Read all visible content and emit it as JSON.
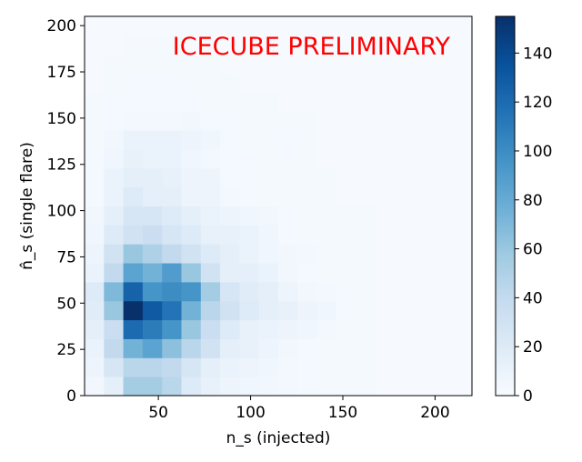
{
  "chart_data": {
    "type": "heatmap",
    "xlabel": "n_s (injected)",
    "ylabel": "n̂_s (single flare)",
    "annotation": "ICECUBE PRELIMINARY",
    "annotation_color": "#ff0000",
    "colormap": "Blues",
    "xlim": [
      10,
      220
    ],
    "ylim": [
      0,
      205
    ],
    "x_ticks": [
      50,
      100,
      150,
      200
    ],
    "y_ticks": [
      0,
      25,
      50,
      75,
      100,
      125,
      150,
      175,
      200
    ],
    "colorbar_range": [
      0,
      155
    ],
    "colorbar_ticks": [
      0,
      20,
      40,
      60,
      80,
      100,
      120,
      140
    ],
    "grid": false,
    "x_bin_edges": [
      10,
      20.5,
      31,
      41.5,
      52,
      62.5,
      73,
      83.5,
      94,
      104.5,
      115,
      125.5,
      136,
      146.5,
      157,
      167.5,
      178,
      188.5,
      199,
      209.5,
      220
    ],
    "y_bin_edges": [
      0,
      10.25,
      20.5,
      30.75,
      41,
      51.25,
      61.5,
      71.75,
      82,
      92.25,
      102.5,
      112.75,
      123,
      133.25,
      143.5,
      153.75,
      164,
      174.25,
      184.5,
      194.75,
      205
    ],
    "counts": [
      [
        5,
        15,
        55,
        55,
        45,
        20,
        12,
        8,
        6,
        5,
        4,
        3,
        2,
        2,
        2,
        1,
        1,
        1,
        1,
        1
      ],
      [
        8,
        25,
        45,
        45,
        40,
        25,
        15,
        10,
        8,
        6,
        4,
        3,
        2,
        2,
        2,
        1,
        1,
        1,
        1,
        1
      ],
      [
        10,
        40,
        75,
        85,
        65,
        45,
        30,
        15,
        12,
        8,
        5,
        3,
        2,
        2,
        2,
        1,
        1,
        1,
        1,
        1
      ],
      [
        15,
        35,
        120,
        110,
        95,
        60,
        35,
        20,
        12,
        10,
        8,
        6,
        4,
        2,
        2,
        1,
        1,
        1,
        1,
        1
      ],
      [
        18,
        60,
        155,
        130,
        115,
        75,
        45,
        30,
        20,
        15,
        12,
        8,
        6,
        3,
        2,
        1,
        1,
        1,
        1,
        1
      ],
      [
        20,
        70,
        125,
        95,
        100,
        95,
        55,
        25,
        18,
        15,
        8,
        5,
        4,
        3,
        2,
        1,
        1,
        1,
        1,
        1
      ],
      [
        10,
        40,
        85,
        75,
        90,
        60,
        30,
        15,
        15,
        10,
        5,
        3,
        2,
        2,
        2,
        1,
        1,
        1,
        1,
        1
      ],
      [
        8,
        30,
        60,
        50,
        40,
        30,
        20,
        15,
        10,
        6,
        5,
        4,
        2,
        2,
        2,
        1,
        1,
        1,
        1,
        1
      ],
      [
        6,
        20,
        30,
        35,
        25,
        20,
        12,
        12,
        10,
        6,
        3,
        2,
        2,
        2,
        2,
        1,
        1,
        1,
        1,
        1
      ],
      [
        5,
        15,
        25,
        25,
        20,
        15,
        10,
        8,
        6,
        5,
        3,
        2,
        2,
        2,
        2,
        1,
        1,
        1,
        1,
        1
      ],
      [
        3,
        10,
        20,
        15,
        15,
        8,
        8,
        4,
        3,
        2,
        2,
        2,
        2,
        1,
        1,
        1,
        1,
        1,
        1,
        1
      ],
      [
        3,
        10,
        15,
        15,
        12,
        8,
        8,
        3,
        3,
        2,
        2,
        2,
        2,
        1,
        1,
        1,
        1,
        1,
        1,
        1
      ],
      [
        3,
        6,
        12,
        10,
        10,
        6,
        4,
        3,
        3,
        2,
        3,
        2,
        1,
        1,
        1,
        1,
        1,
        1,
        1,
        1
      ],
      [
        2,
        5,
        10,
        10,
        10,
        8,
        6,
        3,
        2,
        2,
        3,
        2,
        1,
        1,
        1,
        1,
        1,
        1,
        1,
        1
      ],
      [
        2,
        3,
        4,
        4,
        4,
        5,
        3,
        3,
        2,
        2,
        2,
        2,
        1,
        1,
        1,
        1,
        1,
        1,
        1,
        1
      ],
      [
        2,
        3,
        3,
        3,
        3,
        3,
        2,
        2,
        2,
        2,
        1,
        1,
        1,
        1,
        1,
        1,
        1,
        1,
        1,
        1
      ],
      [
        1,
        2,
        3,
        3,
        3,
        2,
        2,
        2,
        1,
        1,
        1,
        1,
        1,
        1,
        1,
        1,
        1,
        1,
        1,
        1
      ],
      [
        1,
        2,
        2,
        2,
        2,
        2,
        2,
        1,
        1,
        1,
        1,
        1,
        1,
        1,
        1,
        1,
        1,
        1,
        1,
        1
      ],
      [
        1,
        1,
        2,
        2,
        2,
        1,
        1,
        1,
        1,
        1,
        1,
        1,
        1,
        1,
        1,
        1,
        1,
        1,
        1,
        1
      ],
      [
        1,
        1,
        1,
        1,
        1,
        1,
        1,
        1,
        1,
        1,
        1,
        1,
        1,
        1,
        1,
        1,
        1,
        1,
        1,
        1
      ]
    ]
  }
}
